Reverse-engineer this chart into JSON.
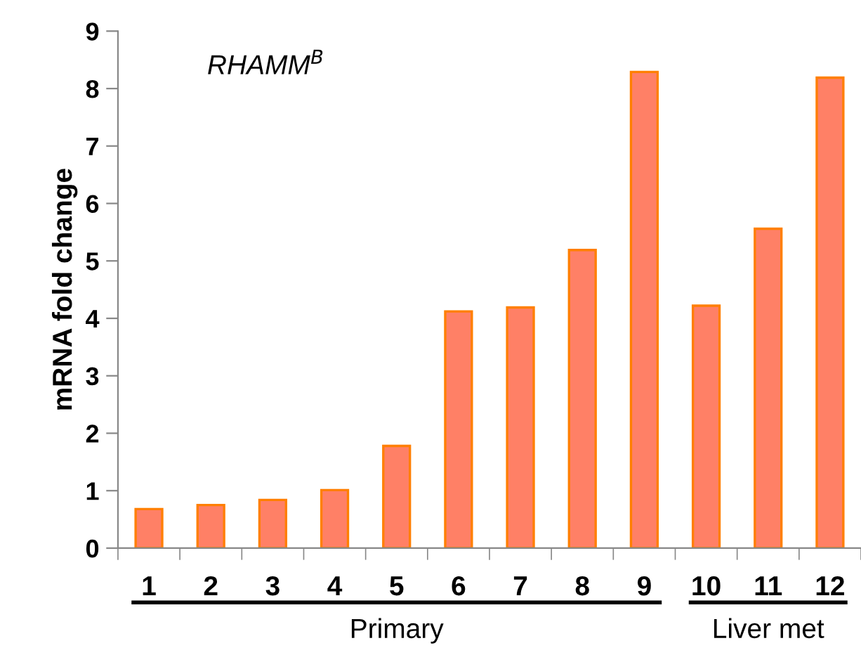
{
  "chart_data": {
    "type": "bar",
    "title": "RHAMM$^{B}$",
    "ylabel": "mRNA fold change",
    "categories": [
      "1",
      "2",
      "3",
      "4",
      "5",
      "6",
      "7",
      "8",
      "9",
      "10",
      "11",
      "12"
    ],
    "series": [
      {
        "color": "#ff8066",
        "values": [
          0.68,
          0.75,
          0.84,
          1.01,
          1.78,
          4.12,
          4.19,
          5.19,
          8.29,
          4.22,
          5.56,
          8.19
        ]
      }
    ],
    "ylim": [
      0,
      9
    ],
    "yticks": [
      0,
      1,
      2,
      3,
      4,
      5,
      6,
      7,
      8,
      9
    ],
    "grid": false,
    "legend": false,
    "annotations": [
      "Primary",
      "Liver met"
    ]
  }
}
